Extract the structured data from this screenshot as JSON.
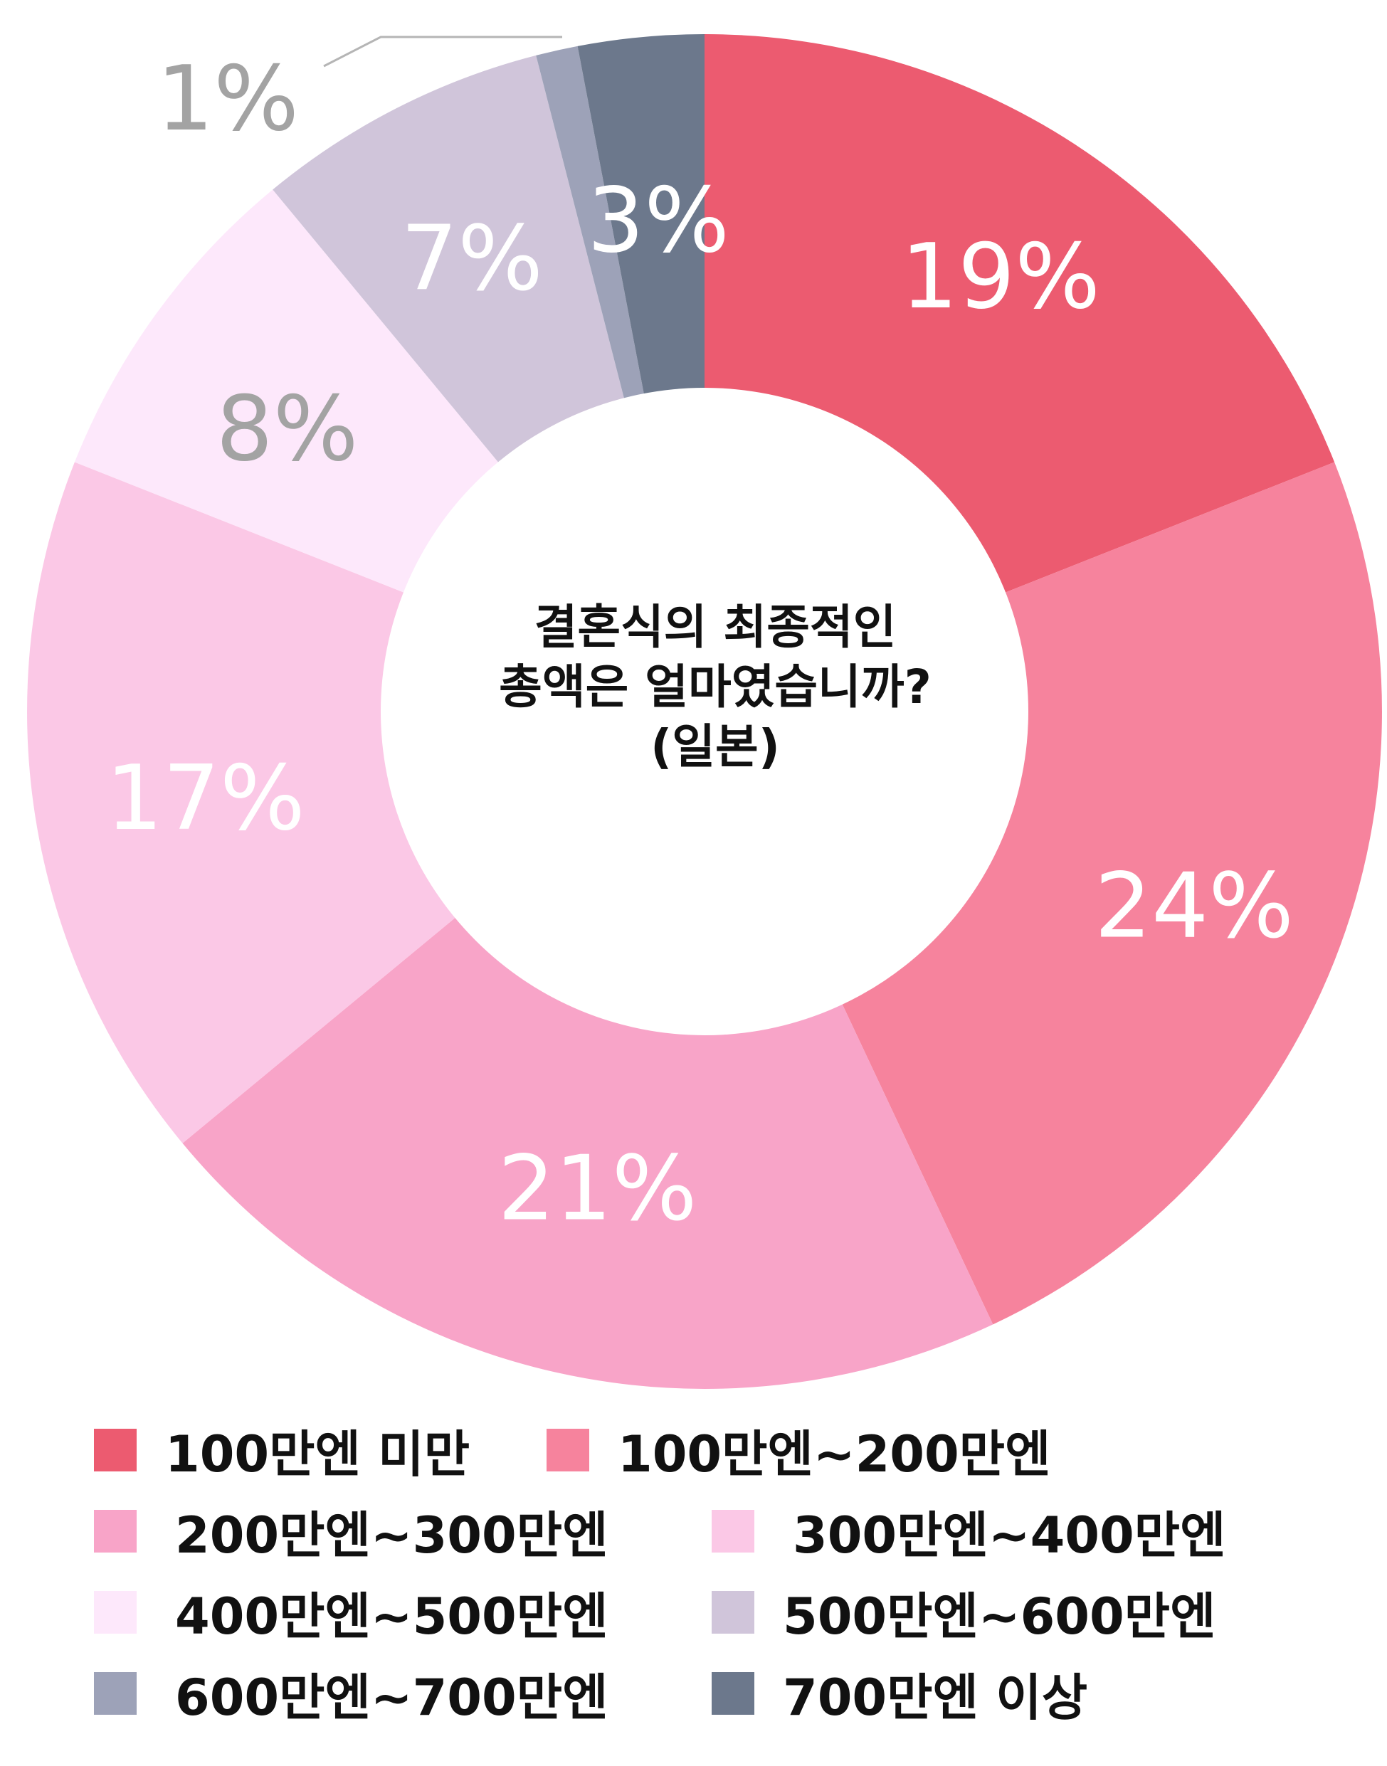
{
  "chart_data": {
    "type": "pie",
    "title": "결혼식의 최종적인\n총액은 얼마였습니까?\n(일본)",
    "title_lines": [
      "결혼식의 최종적인",
      "총액은 얼마였습니까?",
      "(일본)"
    ],
    "legend_position": "bottom",
    "slices": [
      {
        "label": "100만엔 미만",
        "value": 19,
        "display": "19%",
        "color": "#ec5b70",
        "label_color": "#ffffff"
      },
      {
        "label": "100만엔~200만엔",
        "value": 24,
        "display": "24%",
        "color": "#f6839d",
        "label_color": "#ffffff"
      },
      {
        "label": "200만엔~300만엔",
        "value": 21,
        "display": "21%",
        "color": "#f8a4c8",
        "label_color": "#ffffff"
      },
      {
        "label": "300만엔~400만엔",
        "value": 17,
        "display": "17%",
        "color": "#fbc8e6",
        "label_color": "#ffffff"
      },
      {
        "label": "400만엔~500만엔",
        "value": 8,
        "display": "8%",
        "color": "#fde8fb",
        "label_color": "#a3a3a3"
      },
      {
        "label": "500만엔~600만엔",
        "value": 7,
        "display": "7%",
        "color": "#d0c5da",
        "label_color": "#ffffff"
      },
      {
        "label": "600만엔~700만엔",
        "value": 1,
        "display": "1%",
        "color": "#9da2b8",
        "label_color": "#a3a3a3"
      },
      {
        "label": "700만엔 이상",
        "value": 3,
        "display": "3%",
        "color": "#6c788c",
        "label_color": "#ffffff"
      }
    ]
  }
}
